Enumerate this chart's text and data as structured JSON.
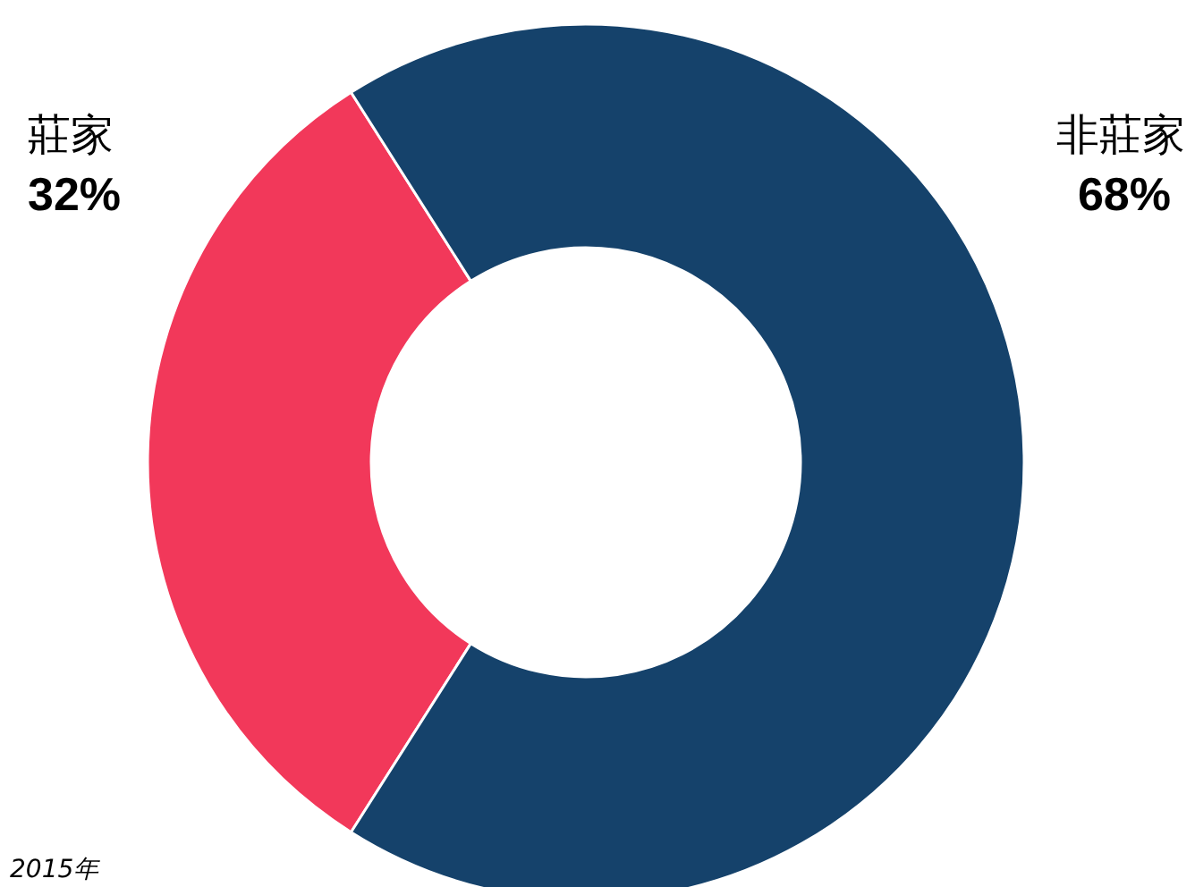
{
  "chart_data": {
    "type": "donut",
    "categories": [
      "莊家",
      "非莊家"
    ],
    "values": [
      32,
      68
    ],
    "colors": [
      "#f2385a",
      "#15426b"
    ],
    "value_labels": [
      "32%",
      "68%"
    ],
    "annotations": [
      "2015年"
    ]
  }
}
